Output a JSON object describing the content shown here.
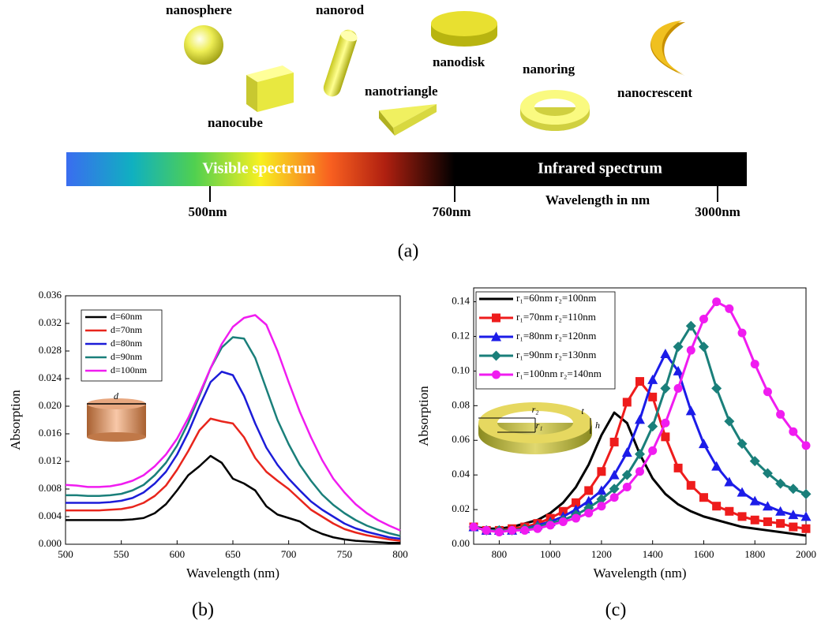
{
  "diagram": {
    "shapes": [
      "nanosphere",
      "nanorod",
      "nanodisk",
      "nanocube",
      "nanotriangle",
      "nanoring",
      "nanocrescent"
    ],
    "spectrum": {
      "visible": "Visible spectrum",
      "infrared": "Infrared spectrum",
      "marks": [
        "500nm",
        "760nm",
        "3000nm"
      ],
      "axis_label": "Wavelength in nm"
    },
    "caption": "(a)"
  },
  "chart_data": [
    {
      "type": "line",
      "caption": "(b)",
      "xlabel": "Wavelength (nm)",
      "ylabel": "Absorption",
      "xlim": [
        500,
        800
      ],
      "xticks": [
        500,
        550,
        600,
        650,
        700,
        750,
        800
      ],
      "ylim": [
        0,
        0.036
      ],
      "yticks": [
        {
          "value": 0,
          "label": "0.000"
        },
        0.004,
        0.008,
        0.012,
        0.016,
        {
          "value": 0.02,
          "label": "0.020"
        },
        0.024,
        0.028,
        0.032,
        0.036
      ],
      "legend": "upper left",
      "inset_labels": [
        "d"
      ],
      "x": [
        500,
        510,
        520,
        530,
        540,
        550,
        560,
        570,
        580,
        590,
        600,
        610,
        620,
        630,
        640,
        650,
        660,
        670,
        680,
        690,
        700,
        710,
        720,
        730,
        740,
        750,
        760,
        770,
        780,
        790,
        800
      ],
      "series": [
        {
          "name": "d=60nm",
          "color": "#000000",
          "values": [
            0.0035,
            0.0035,
            0.0035,
            0.0035,
            0.0035,
            0.0035,
            0.0036,
            0.0038,
            0.0045,
            0.0058,
            0.0078,
            0.01,
            0.0113,
            0.0128,
            0.0118,
            0.0095,
            0.0088,
            0.0078,
            0.0055,
            0.0043,
            0.0038,
            0.0033,
            0.0022,
            0.0015,
            0.001,
            0.0007,
            0.0005,
            0.0004,
            0.0003,
            0.0002,
            0.0002
          ]
        },
        {
          "name": "d=70nm",
          "color": "#e8251c",
          "values": [
            0.0049,
            0.0049,
            0.0049,
            0.0049,
            0.005,
            0.0051,
            0.0054,
            0.006,
            0.007,
            0.0085,
            0.0108,
            0.0135,
            0.0165,
            0.0182,
            0.0178,
            0.0175,
            0.0155,
            0.0125,
            0.0105,
            0.0092,
            0.008,
            0.0065,
            0.005,
            0.004,
            0.003,
            0.0022,
            0.0017,
            0.0013,
            0.001,
            0.0007,
            0.0005
          ]
        },
        {
          "name": "d=80nm",
          "color": "#1c1cd8",
          "values": [
            0.006,
            0.006,
            0.006,
            0.006,
            0.0061,
            0.0063,
            0.0067,
            0.0075,
            0.0088,
            0.0105,
            0.013,
            0.0162,
            0.02,
            0.0235,
            0.025,
            0.0245,
            0.0215,
            0.0175,
            0.014,
            0.0115,
            0.0095,
            0.0078,
            0.0062,
            0.005,
            0.004,
            0.003,
            0.0023,
            0.0018,
            0.0014,
            0.001,
            0.0008
          ]
        },
        {
          "name": "d=90nm",
          "color": "#1a7f7a",
          "values": [
            0.0071,
            0.0071,
            0.007,
            0.007,
            0.0071,
            0.0073,
            0.0078,
            0.0086,
            0.01,
            0.0118,
            0.0143,
            0.0176,
            0.0215,
            0.0255,
            0.0285,
            0.03,
            0.0298,
            0.027,
            0.0225,
            0.018,
            0.0145,
            0.0115,
            0.0092,
            0.0072,
            0.0057,
            0.0045,
            0.0035,
            0.0027,
            0.0021,
            0.0016,
            0.0012
          ]
        },
        {
          "name": "d=100nm",
          "color": "#f01cf0",
          "values": [
            0.0086,
            0.0085,
            0.0083,
            0.0083,
            0.0084,
            0.0087,
            0.0092,
            0.01,
            0.0113,
            0.013,
            0.0153,
            0.0183,
            0.0218,
            0.0255,
            0.029,
            0.0315,
            0.0328,
            0.0332,
            0.0318,
            0.028,
            0.0235,
            0.0192,
            0.0155,
            0.0122,
            0.0095,
            0.0075,
            0.0058,
            0.0045,
            0.0035,
            0.0027,
            0.002
          ]
        }
      ]
    },
    {
      "type": "line",
      "caption": "(c)",
      "xlabel": "Wavelength (nm)",
      "ylabel": "Absorption",
      "xlim": [
        700,
        2000
      ],
      "xticks": [
        800,
        1000,
        1200,
        1400,
        1600,
        1800,
        2000
      ],
      "ylim": [
        0,
        0.148
      ],
      "yticks": [
        {
          "value": 0,
          "label": "0.00"
        },
        0.02,
        0.04,
        0.06,
        0.08,
        {
          "value": 0.1,
          "label": "0.10"
        },
        0.12,
        0.14
      ],
      "legend": "upper left",
      "inset_labels": [
        "r₂",
        "r₁",
        "t",
        "h"
      ],
      "x": [
        700,
        750,
        800,
        850,
        900,
        950,
        1000,
        1050,
        1100,
        1150,
        1200,
        1250,
        1300,
        1350,
        1400,
        1450,
        1500,
        1550,
        1600,
        1650,
        1700,
        1750,
        1800,
        1850,
        1900,
        1950,
        2000
      ],
      "series": [
        {
          "name": "r₁=60nm   r₂=100nm",
          "color": "#000000",
          "marker": "none",
          "values": [
            0.01,
            0.009,
            0.009,
            0.01,
            0.012,
            0.014,
            0.018,
            0.024,
            0.033,
            0.046,
            0.063,
            0.076,
            0.07,
            0.052,
            0.038,
            0.029,
            0.023,
            0.019,
            0.016,
            0.014,
            0.012,
            0.01,
            0.009,
            0.008,
            0.007,
            0.006,
            0.005
          ]
        },
        {
          "name": "r₁=70nm   r₂=110nm",
          "color": "#ee1c1c",
          "marker": "square",
          "values": [
            0.01,
            0.008,
            0.008,
            0.009,
            0.01,
            0.012,
            0.015,
            0.019,
            0.024,
            0.031,
            0.042,
            0.059,
            0.082,
            0.094,
            0.085,
            0.062,
            0.044,
            0.034,
            0.027,
            0.022,
            0.019,
            0.016,
            0.014,
            0.013,
            0.012,
            0.01,
            0.009
          ]
        },
        {
          "name": "r₁=80nm   r₂=120nm",
          "color": "#1c1ce8",
          "marker": "triangle",
          "values": [
            0.01,
            0.008,
            0.008,
            0.008,
            0.009,
            0.011,
            0.013,
            0.016,
            0.02,
            0.025,
            0.031,
            0.04,
            0.053,
            0.072,
            0.095,
            0.11,
            0.1,
            0.077,
            0.058,
            0.045,
            0.036,
            0.03,
            0.025,
            0.022,
            0.019,
            0.017,
            0.016
          ]
        },
        {
          "name": "r₁=90nm   r₂=130nm",
          "color": "#1a7f7a",
          "marker": "diamond",
          "values": [
            0.01,
            0.008,
            0.008,
            0.008,
            0.009,
            0.01,
            0.012,
            0.014,
            0.017,
            0.021,
            0.026,
            0.032,
            0.04,
            0.052,
            0.068,
            0.09,
            0.114,
            0.126,
            0.114,
            0.09,
            0.071,
            0.058,
            0.048,
            0.041,
            0.035,
            0.032,
            0.029
          ]
        },
        {
          "name": "r₁=100nm r₂=140nm",
          "color": "#f01cf0",
          "marker": "circle",
          "values": [
            0.01,
            0.008,
            0.007,
            0.008,
            0.008,
            0.009,
            0.011,
            0.013,
            0.015,
            0.018,
            0.022,
            0.027,
            0.033,
            0.042,
            0.054,
            0.07,
            0.09,
            0.112,
            0.13,
            0.14,
            0.136,
            0.122,
            0.104,
            0.088,
            0.075,
            0.065,
            0.057
          ]
        }
      ]
    }
  ]
}
